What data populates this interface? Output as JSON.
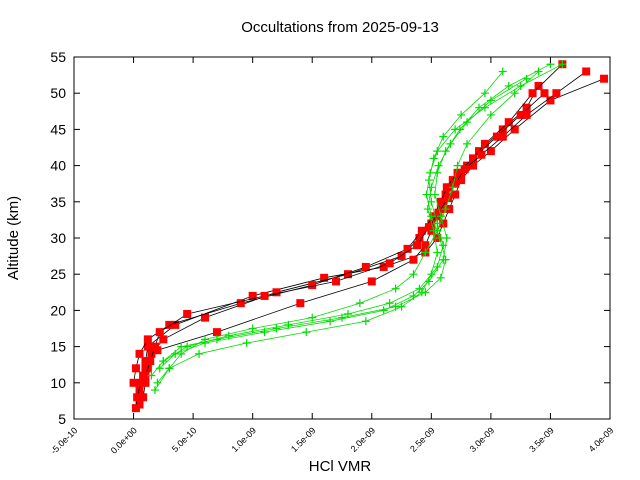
{
  "chart_data": {
    "type": "line",
    "title": "Occultations from 2025-09-13",
    "xlabel": "HCl VMR",
    "ylabel": "Altitude (km)",
    "xlim": [
      -5e-10,
      4e-09
    ],
    "ylim": [
      5,
      55
    ],
    "xticks": [
      -5e-10,
      0,
      5e-10,
      1e-09,
      1.5e-09,
      2e-09,
      2.5e-09,
      3e-09,
      3.5e-09,
      4e-09
    ],
    "xtick_labels": [
      "-5.0e-10",
      "0.0e+00",
      "5.0e-10",
      "1.0e-09",
      "1.5e-09",
      "2.0e-09",
      "2.5e-09",
      "3.0e-09",
      "3.5e-09",
      "4.0e-09"
    ],
    "yticks": [
      5,
      10,
      15,
      20,
      25,
      30,
      35,
      40,
      45,
      50,
      55
    ],
    "ytick_labels": [
      "5",
      "10",
      "15",
      "20",
      "25",
      "30",
      "35",
      "40",
      "45",
      "50",
      "55"
    ],
    "grid": false,
    "legend": "none",
    "colors": {
      "red_series": "#ff0000",
      "green_series": "#00dd00",
      "line": "#000000"
    },
    "series": [
      {
        "color": "#ff0000",
        "marker": "square",
        "x": [
          5e-11,
          5e-11,
          8e-11,
          1e-10,
          1.2e-10,
          3.5e-10,
          1e-09,
          1.6e-09,
          2.1e-09,
          2.45e-09,
          2.55e-09,
          2.6e-09,
          2.65e-09,
          2.7e-09,
          2.75e-09,
          2.85e-09,
          3e-09,
          3.2e-09,
          3.5e-09,
          3.95e-09
        ],
        "y": [
          7,
          9,
          11,
          13,
          15,
          18,
          22,
          24.5,
          26,
          28,
          30,
          32,
          34,
          36,
          38,
          40,
          42,
          45,
          49,
          52
        ]
      },
      {
        "color": "#ff0000",
        "marker": "square",
        "x": [
          2e-11,
          3e-11,
          6e-11,
          1e-10,
          2e-10,
          7e-10,
          1.4e-09,
          2e-09,
          2.35e-09,
          2.45e-09,
          2.5e-09,
          2.55e-09,
          2.6e-09,
          2.65e-09,
          2.75e-09,
          2.9e-09,
          3.1e-09,
          3.3e-09,
          3.4e-09
        ],
        "y": [
          6.5,
          8,
          10,
          12,
          14.5,
          17,
          21,
          24,
          27,
          29,
          31,
          33,
          35,
          37,
          39,
          42,
          45,
          48,
          51
        ]
      },
      {
        "color": "#ff0000",
        "marker": "square",
        "x": [
          8e-11,
          1e-10,
          1.2e-10,
          1.5e-10,
          2.5e-10,
          6e-10,
          1.2e-09,
          1.8e-09,
          2.25e-09,
          2.4e-09,
          2.5e-09,
          2.58e-09,
          2.62e-09,
          2.68e-09,
          2.8e-09,
          2.95e-09,
          3.15e-09,
          3.35e-09,
          3.6e-09
        ],
        "y": [
          8,
          10,
          12,
          14,
          16,
          19,
          22.5,
          25,
          27.5,
          30,
          32,
          34,
          36,
          38,
          40,
          43,
          46,
          50,
          54
        ]
      },
      {
        "color": "#ff0000",
        "marker": "square",
        "x": [
          0.0,
          2e-11,
          5e-11,
          1.2e-10,
          3e-10,
          9e-10,
          1.5e-09,
          1.95e-09,
          2.3e-09,
          2.42e-09,
          2.52e-09,
          2.58e-09,
          2.63e-09,
          2.72e-09,
          2.85e-09,
          3.05e-09,
          3.25e-09,
          3.45e-09
        ],
        "y": [
          10,
          12,
          14,
          16,
          18,
          21,
          23.5,
          26,
          28.5,
          31,
          33,
          35,
          37,
          39,
          41,
          44,
          47,
          50
        ]
      },
      {
        "color": "#ff0000",
        "marker": "square",
        "x": [
          1e-10,
          1.4e-10,
          1.8e-10,
          2.2e-10,
          4.5e-10,
          1.1e-09,
          1.7e-09,
          2.15e-09,
          2.38e-09,
          2.48e-09,
          2.56e-09,
          2.64e-09,
          2.7e-09,
          2.78e-09,
          2.92e-09,
          3.1e-09,
          3.3e-09,
          3.55e-09,
          3.8e-09
        ],
        "y": [
          11,
          13,
          15,
          17,
          19.5,
          22,
          24,
          26.5,
          29,
          31.5,
          33.5,
          35.5,
          37.5,
          39.5,
          41.5,
          44,
          47,
          50,
          53
        ]
      },
      {
        "color": "#00dd00",
        "marker": "plus",
        "x": [
          2e-10,
          3e-10,
          4e-10,
          6e-10,
          1e-09,
          1.5e-09,
          1.9e-09,
          2.2e-09,
          2.35e-09,
          2.45e-09,
          2.55e-09,
          2.62e-09,
          2.68e-09,
          2.72e-09,
          2.8e-09,
          3e-09,
          3.2e-09,
          3.4e-09
        ],
        "y": [
          10,
          12,
          14,
          16,
          17.5,
          19,
          21,
          23,
          25,
          28,
          31,
          34,
          37,
          40,
          43,
          47,
          50,
          53
        ]
      },
      {
        "color": "#00dd00",
        "marker": "plus",
        "x": [
          1.5e-10,
          2.5e-10,
          4.5e-10,
          8e-10,
          1.3e-09,
          1.8e-09,
          2.15e-09,
          2.4e-09,
          2.55e-09,
          2.6e-09,
          2.55e-09,
          2.5e-09,
          2.48e-09,
          2.52e-09,
          2.6e-09,
          2.75e-09,
          2.95e-09,
          3.1e-09
        ],
        "y": [
          11,
          13,
          15,
          16.5,
          18,
          19.5,
          21,
          23,
          26,
          29,
          32,
          35,
          38,
          41,
          44,
          47,
          50,
          53
        ]
      },
      {
        "color": "#00dd00",
        "marker": "plus",
        "x": [
          1.8e-10,
          3e-10,
          5.5e-10,
          9.5e-10,
          1.45e-09,
          1.95e-09,
          2.25e-09,
          2.42e-09,
          2.5e-09,
          2.55e-09,
          2.52e-09,
          2.47e-09,
          2.5e-09,
          2.56e-09,
          2.66e-09,
          2.8e-09,
          3e-09,
          3.3e-09
        ],
        "y": [
          9,
          12,
          14,
          15.5,
          17,
          18.5,
          20.5,
          22.5,
          25,
          28,
          31,
          34,
          37,
          40,
          43,
          46,
          49,
          52
        ]
      },
      {
        "color": "#00dd00",
        "marker": "plus",
        "x": [
          2.2e-10,
          3.5e-10,
          6e-10,
          1.1e-09,
          1.65e-09,
          2.1e-09,
          2.35e-09,
          2.48e-09,
          2.6e-09,
          2.63e-09,
          2.58e-09,
          2.53e-09,
          2.55e-09,
          2.62e-09,
          2.74e-09,
          2.9e-09,
          3.15e-09,
          3.5e-09
        ],
        "y": [
          12,
          14,
          15.5,
          17,
          18.5,
          20,
          22,
          24,
          27,
          30,
          33,
          36,
          39,
          42,
          45,
          48,
          51,
          54
        ]
      },
      {
        "color": "#00dd00",
        "marker": "plus",
        "x": [
          2.5e-10,
          4e-10,
          7e-10,
          1.2e-09,
          1.75e-09,
          2.2e-09,
          2.45e-09,
          2.58e-09,
          2.62e-09,
          2.57e-09,
          2.5e-09,
          2.46e-09,
          2.49e-09,
          2.55e-09,
          2.7e-09,
          2.95e-09,
          3.25e-09,
          3.6e-09
        ],
        "y": [
          13,
          15,
          16,
          17.5,
          19,
          20.5,
          22.5,
          24.5,
          27,
          30,
          33,
          36,
          39,
          42,
          45,
          48,
          51,
          54
        ]
      }
    ]
  }
}
